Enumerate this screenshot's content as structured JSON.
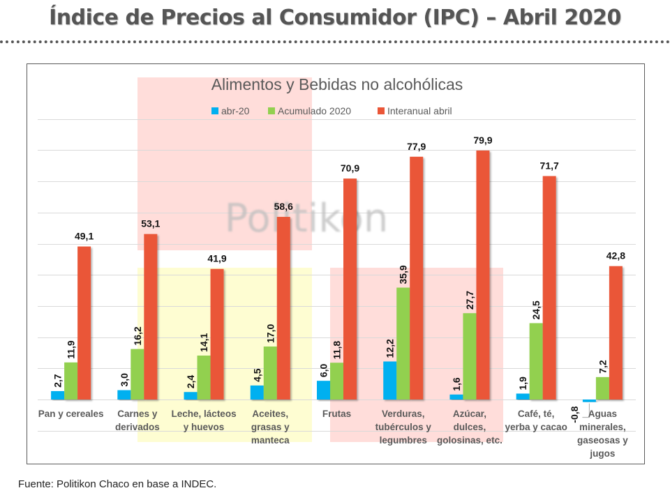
{
  "page": {
    "title": "Índice de Precios al Consumidor (IPC) – Abril 2020",
    "source_label": "Fuente",
    "source_text": ": Politikon Chaco en base a INDEC.",
    "watermark": "Politikon"
  },
  "colors": {
    "abr20": "#00B0F0",
    "acumulado": "#92D050",
    "interanual": "#EA5637",
    "highlight_pink": "#FFDDDA",
    "highlight_yellow": "#FEFDD2",
    "title_text": "#555555"
  },
  "chart_data": {
    "type": "bar",
    "title": "Alimentos y Bebidas no alcohólicas",
    "xlabel": "",
    "ylabel": "",
    "ylim": [
      -10,
      90
    ],
    "grid": true,
    "gridline_step": 10,
    "legend_position": "top",
    "categories": [
      [
        "Pan y cereales"
      ],
      [
        "Carnes y",
        "derivados"
      ],
      [
        "Leche, lácteos",
        "y huevos"
      ],
      [
        "Aceites,",
        "grasas y",
        "manteca"
      ],
      [
        "Frutas"
      ],
      [
        "Verduras,",
        "tubérculos y",
        "legumbres"
      ],
      [
        "Azúcar,",
        "dulces,",
        "golosinas, etc."
      ],
      [
        "Café, té,",
        "yerba y cacao"
      ],
      [
        "Aguas",
        "minerales,",
        "gaseosas y",
        "jugos"
      ]
    ],
    "series": [
      {
        "name": "abr-20",
        "color_key": "abr20",
        "label_rotation": "vertical",
        "values": [
          2.7,
          3.0,
          2.4,
          4.5,
          6.0,
          12.2,
          1.6,
          1.9,
          -0.8
        ],
        "labels": [
          "2,7",
          "3,0",
          "2,4",
          "4,5",
          "6,0",
          "12,2",
          "1,6",
          "1,9",
          "-0,8"
        ]
      },
      {
        "name": "Acumulado 2020",
        "color_key": "acumulado",
        "label_rotation": "vertical",
        "values": [
          11.9,
          16.2,
          14.1,
          17.0,
          11.8,
          35.9,
          27.7,
          24.5,
          7.2
        ],
        "labels": [
          "11,9",
          "16,2",
          "14,1",
          "17,0",
          "11,8",
          "35,9",
          "27,7",
          "24,5",
          "7,2"
        ]
      },
      {
        "name": "Interanual abril",
        "color_key": "interanual",
        "label_rotation": "horizontal",
        "values": [
          49.1,
          53.1,
          41.9,
          58.6,
          70.9,
          77.9,
          79.9,
          71.7,
          42.8
        ],
        "labels": [
          "49,1",
          "53,1",
          "41,9",
          "58,6",
          "70,9",
          "77,9",
          "79,9",
          "71,7",
          "42,8"
        ]
      }
    ]
  }
}
